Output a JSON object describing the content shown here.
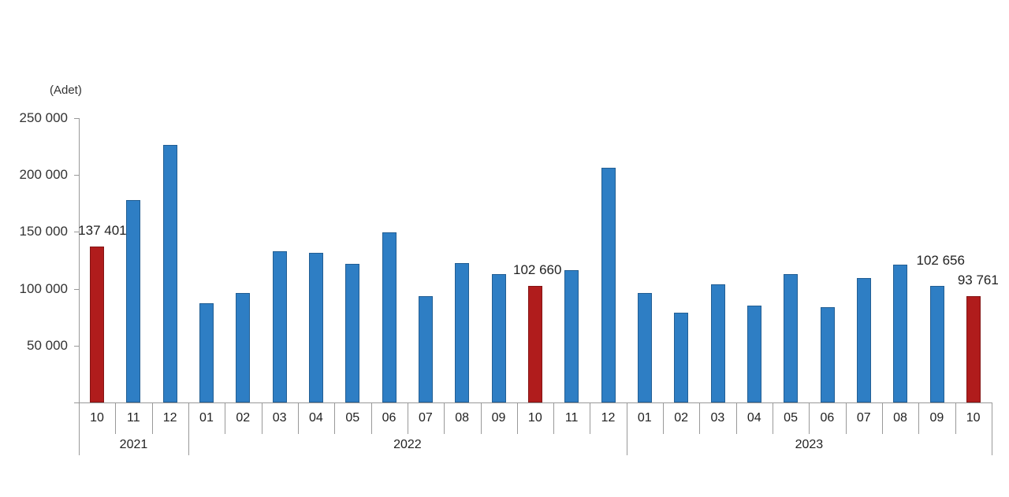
{
  "chart_data": {
    "type": "bar",
    "title": "",
    "unit_label": "(Adet)",
    "xlabel": "",
    "ylabel": "(Adet)",
    "ylim": [
      0,
      250000
    ],
    "yticks": [
      "250 000",
      "200 000",
      "150 000",
      "100 000",
      "50 000"
    ],
    "ytick_values": [
      250000,
      200000,
      150000,
      100000,
      50000
    ],
    "grid": false,
    "legend": null,
    "categories": [
      "10",
      "11",
      "12",
      "01",
      "02",
      "03",
      "04",
      "05",
      "06",
      "07",
      "08",
      "09",
      "10",
      "11",
      "12",
      "01",
      "02",
      "03",
      "04",
      "05",
      "06",
      "07",
      "08",
      "09",
      "10"
    ],
    "years": [
      {
        "label": "2021",
        "start": 0,
        "count": 3
      },
      {
        "label": "2022",
        "start": 3,
        "count": 12
      },
      {
        "label": "2023",
        "start": 15,
        "count": 10
      }
    ],
    "series": [
      {
        "name": "Adet",
        "values": [
          137401,
          177800,
          226400,
          87300,
          96500,
          132700,
          131800,
          121900,
          149600,
          93500,
          122600,
          112700,
          102660,
          116600,
          206600,
          96500,
          79200,
          104100,
          85400,
          112700,
          83800,
          109200,
          121400,
          102656,
          93761
        ]
      }
    ],
    "highlighted_indices": [
      0,
      12,
      24
    ],
    "data_labels": [
      {
        "index": 0,
        "text": "137 401"
      },
      {
        "index": 12,
        "text": "102 660"
      },
      {
        "index": 23,
        "text": "102 656"
      },
      {
        "index": 24,
        "text": "93 761"
      }
    ],
    "colors": {
      "bar": "#2e7ec4",
      "highlight": "#b01c1c",
      "axis": "#999999"
    }
  }
}
